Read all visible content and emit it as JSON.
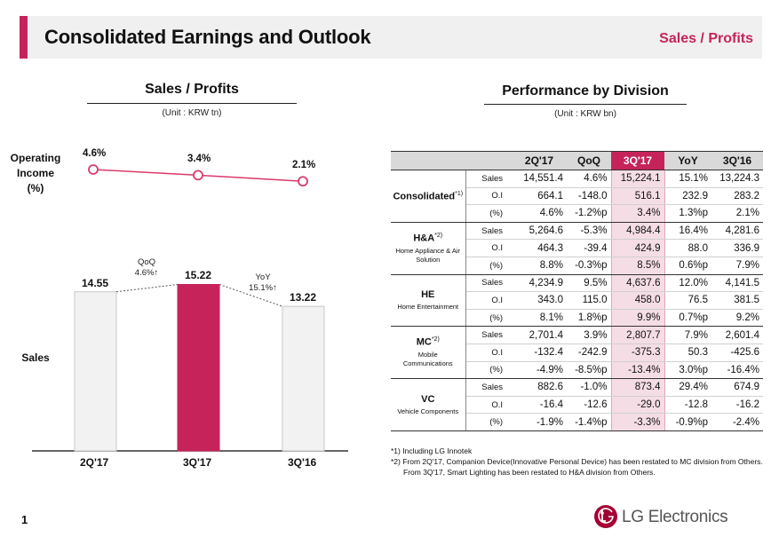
{
  "header": {
    "title": "Consolidated Earnings and Outlook",
    "section": "Sales / Profits"
  },
  "left": {
    "title": "Sales / Profits",
    "unit": "(Unit : KRW tn)",
    "oi_label_1": "Operating",
    "oi_label_2": "Income",
    "oi_label_3": "(%)",
    "sales_label": "Sales",
    "qoq_1": "QoQ",
    "qoq_2": "4.6%↑",
    "yoy_1": "YoY",
    "yoy_2": "15.1%↑"
  },
  "chart_data": {
    "type": "bar",
    "title": "Sales / Profits",
    "categories": [
      "2Q'17",
      "3Q'17",
      "3Q'16"
    ],
    "series": [
      {
        "name": "Sales",
        "values": [
          14.55,
          15.22,
          13.22
        ],
        "labels": [
          "14.55",
          "15.22",
          "13.22"
        ]
      },
      {
        "name": "Operating Income (%)",
        "values": [
          4.6,
          3.4,
          2.1
        ],
        "labels": [
          "4.6%",
          "3.4%",
          "2.1%"
        ]
      }
    ],
    "colors": {
      "bar": "#f2f2f2",
      "bar_highlight": "#c6235a",
      "line": "#d93a6a"
    }
  },
  "right": {
    "title": "Performance by Division",
    "unit": "(Unit : KRW bn)",
    "columns": [
      "2Q'17",
      "QoQ",
      "3Q'17",
      "YoY",
      "3Q'16"
    ],
    "divisions": [
      {
        "name": "Consolidated",
        "sup": "*1)",
        "sub": "",
        "rows": [
          {
            "metric": "Sales",
            "values": [
              "14,551.4",
              "4.6%",
              "15,224.1",
              "15.1%",
              "13,224.3"
            ]
          },
          {
            "metric": "O.I",
            "values": [
              "664.1",
              "-148.0",
              "516.1",
              "232.9",
              "283.2"
            ]
          },
          {
            "metric": "(%)",
            "values": [
              "4.6%",
              "-1.2%p",
              "3.4%",
              "1.3%p",
              "2.1%"
            ]
          }
        ]
      },
      {
        "name": "H&A",
        "sup": "*2)",
        "sub": "Home Appliance & Air Solution",
        "rows": [
          {
            "metric": "Sales",
            "values": [
              "5,264.6",
              "-5.3%",
              "4,984.4",
              "16.4%",
              "4,281.6"
            ]
          },
          {
            "metric": "O.I",
            "values": [
              "464.3",
              "-39.4",
              "424.9",
              "88.0",
              "336.9"
            ]
          },
          {
            "metric": "(%)",
            "values": [
              "8.8%",
              "-0.3%p",
              "8.5%",
              "0.6%p",
              "7.9%"
            ]
          }
        ]
      },
      {
        "name": "HE",
        "sup": "",
        "sub": "Home Entertainment",
        "rows": [
          {
            "metric": "Sales",
            "values": [
              "4,234.9",
              "9.5%",
              "4,637.6",
              "12.0%",
              "4,141.5"
            ]
          },
          {
            "metric": "O.I",
            "values": [
              "343.0",
              "115.0",
              "458.0",
              "76.5",
              "381.5"
            ]
          },
          {
            "metric": "(%)",
            "values": [
              "8.1%",
              "1.8%p",
              "9.9%",
              "0.7%p",
              "9.2%"
            ]
          }
        ]
      },
      {
        "name": "MC",
        "sup": "*2)",
        "sub": "Mobile Communications",
        "rows": [
          {
            "metric": "Sales",
            "values": [
              "2,701.4",
              "3.9%",
              "2,807.7",
              "7.9%",
              "2,601.4"
            ]
          },
          {
            "metric": "O.I",
            "values": [
              "-132.4",
              "-242.9",
              "-375.3",
              "50.3",
              "-425.6"
            ]
          },
          {
            "metric": "(%)",
            "values": [
              "-4.9%",
              "-8.5%p",
              "-13.4%",
              "3.0%p",
              "-16.4%"
            ]
          }
        ]
      },
      {
        "name": "VC",
        "sup": "",
        "sub": "Vehicle Components",
        "rows": [
          {
            "metric": "Sales",
            "values": [
              "882.6",
              "-1.0%",
              "873.4",
              "29.4%",
              "674.9"
            ]
          },
          {
            "metric": "O.I",
            "values": [
              "-16.4",
              "-12.6",
              "-29.0",
              "-12.8",
              "-16.2"
            ]
          },
          {
            "metric": "(%)",
            "values": [
              "-1.9%",
              "-1.4%p",
              "-3.3%",
              "-0.9%p",
              "-2.4%"
            ]
          }
        ]
      }
    ],
    "footnotes": [
      "*1) Including LG Innotek",
      "*2) From 2Q'17, Companion Device(Innovative Personal Device) has been restated to MC division from Others.",
      "From 3Q'17, Smart Lighting has been restated to H&A division from Others."
    ]
  },
  "footer": {
    "page": "1",
    "brand": "LG Electronics"
  }
}
